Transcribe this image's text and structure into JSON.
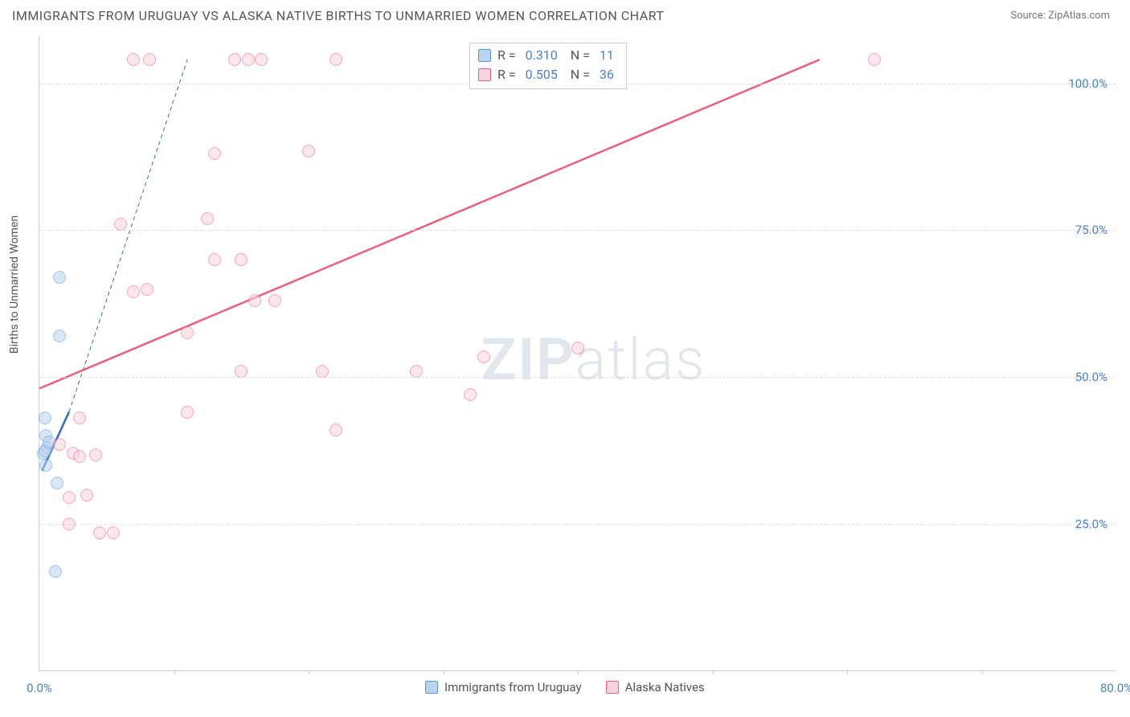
{
  "header": {
    "title": "IMMIGRANTS FROM URUGUAY VS ALASKA NATIVE BIRTHS TO UNMARRIED WOMEN CORRELATION CHART",
    "source": "Source: ZipAtlas.com"
  },
  "watermark": {
    "bold": "ZIP",
    "light": "atlas"
  },
  "chart": {
    "type": "scatter",
    "ylabel": "Births to Unmarried Women",
    "xlim": [
      0,
      80
    ],
    "ylim": [
      0,
      108
    ],
    "xtick_step": 10,
    "ytick_step": 25,
    "ytick_min": 25,
    "ytick_max": 100,
    "xtick_labels": [
      "0.0%",
      "80.0%"
    ],
    "ytick_labels": [
      "25.0%",
      "50.0%",
      "75.0%",
      "100.0%"
    ],
    "grid_color": "#dddddd",
    "axis_color": "#cccccc",
    "background_color": "#ffffff",
    "series": [
      {
        "name": "Immigrants from Uruguay",
        "fill_color": "#b9d3f0",
        "stroke_color": "#5a96d6",
        "opacity": 0.55,
        "R": "0.310",
        "N": "11",
        "trend": {
          "x1": 0.2,
          "y1": 34,
          "x2": 2.2,
          "y2": 44,
          "dashed_ext_x": 11,
          "dashed_ext_y": 104,
          "color": "#3568b8",
          "width": 2.5
        },
        "points": [
          {
            "x": 0.3,
            "y": 37
          },
          {
            "x": 0.6,
            "y": 38
          },
          {
            "x": 0.5,
            "y": 40
          },
          {
            "x": 0.4,
            "y": 37.5
          },
          {
            "x": 1.3,
            "y": 32
          },
          {
            "x": 1.2,
            "y": 17
          },
          {
            "x": 1.5,
            "y": 67
          },
          {
            "x": 1.5,
            "y": 57
          },
          {
            "x": 0.5,
            "y": 35
          },
          {
            "x": 0.7,
            "y": 39
          },
          {
            "x": 0.4,
            "y": 43
          }
        ]
      },
      {
        "name": "Alaska Natives",
        "fill_color": "#f9d4de",
        "stroke_color": "#e9607e",
        "opacity": 0.55,
        "R": "0.505",
        "N": "36",
        "trend": {
          "x1": 0,
          "y1": 48,
          "x2": 58,
          "y2": 104,
          "color": "#e9607e",
          "width": 2.5
        },
        "points": [
          {
            "x": 7,
            "y": 104
          },
          {
            "x": 8.2,
            "y": 104
          },
          {
            "x": 14.5,
            "y": 104
          },
          {
            "x": 15.5,
            "y": 104
          },
          {
            "x": 16.5,
            "y": 104
          },
          {
            "x": 22,
            "y": 104
          },
          {
            "x": 62,
            "y": 104
          },
          {
            "x": 20,
            "y": 88.5
          },
          {
            "x": 13,
            "y": 88
          },
          {
            "x": 6,
            "y": 76
          },
          {
            "x": 12.5,
            "y": 77
          },
          {
            "x": 13,
            "y": 70
          },
          {
            "x": 15,
            "y": 70
          },
          {
            "x": 16,
            "y": 63
          },
          {
            "x": 17.5,
            "y": 63
          },
          {
            "x": 7,
            "y": 64.5
          },
          {
            "x": 8,
            "y": 65
          },
          {
            "x": 11,
            "y": 57.5
          },
          {
            "x": 15,
            "y": 51
          },
          {
            "x": 21,
            "y": 51
          },
          {
            "x": 33,
            "y": 53.5
          },
          {
            "x": 40,
            "y": 55
          },
          {
            "x": 28,
            "y": 51
          },
          {
            "x": 32,
            "y": 47
          },
          {
            "x": 22,
            "y": 41
          },
          {
            "x": 11,
            "y": 44
          },
          {
            "x": 3,
            "y": 43
          },
          {
            "x": 1.5,
            "y": 38.5
          },
          {
            "x": 2.5,
            "y": 37
          },
          {
            "x": 3,
            "y": 36.5
          },
          {
            "x": 4.2,
            "y": 36.8
          },
          {
            "x": 2.2,
            "y": 29.5
          },
          {
            "x": 3.5,
            "y": 30
          },
          {
            "x": 2.2,
            "y": 25
          },
          {
            "x": 4.5,
            "y": 23.5
          },
          {
            "x": 5.5,
            "y": 23.5
          }
        ]
      }
    ],
    "legend_bottom": [
      {
        "label": "Immigrants from Uruguay",
        "fill": "#b9d3f0",
        "stroke": "#5a96d6"
      },
      {
        "label": "Alaska Natives",
        "fill": "#f9d4de",
        "stroke": "#e9607e"
      }
    ]
  }
}
